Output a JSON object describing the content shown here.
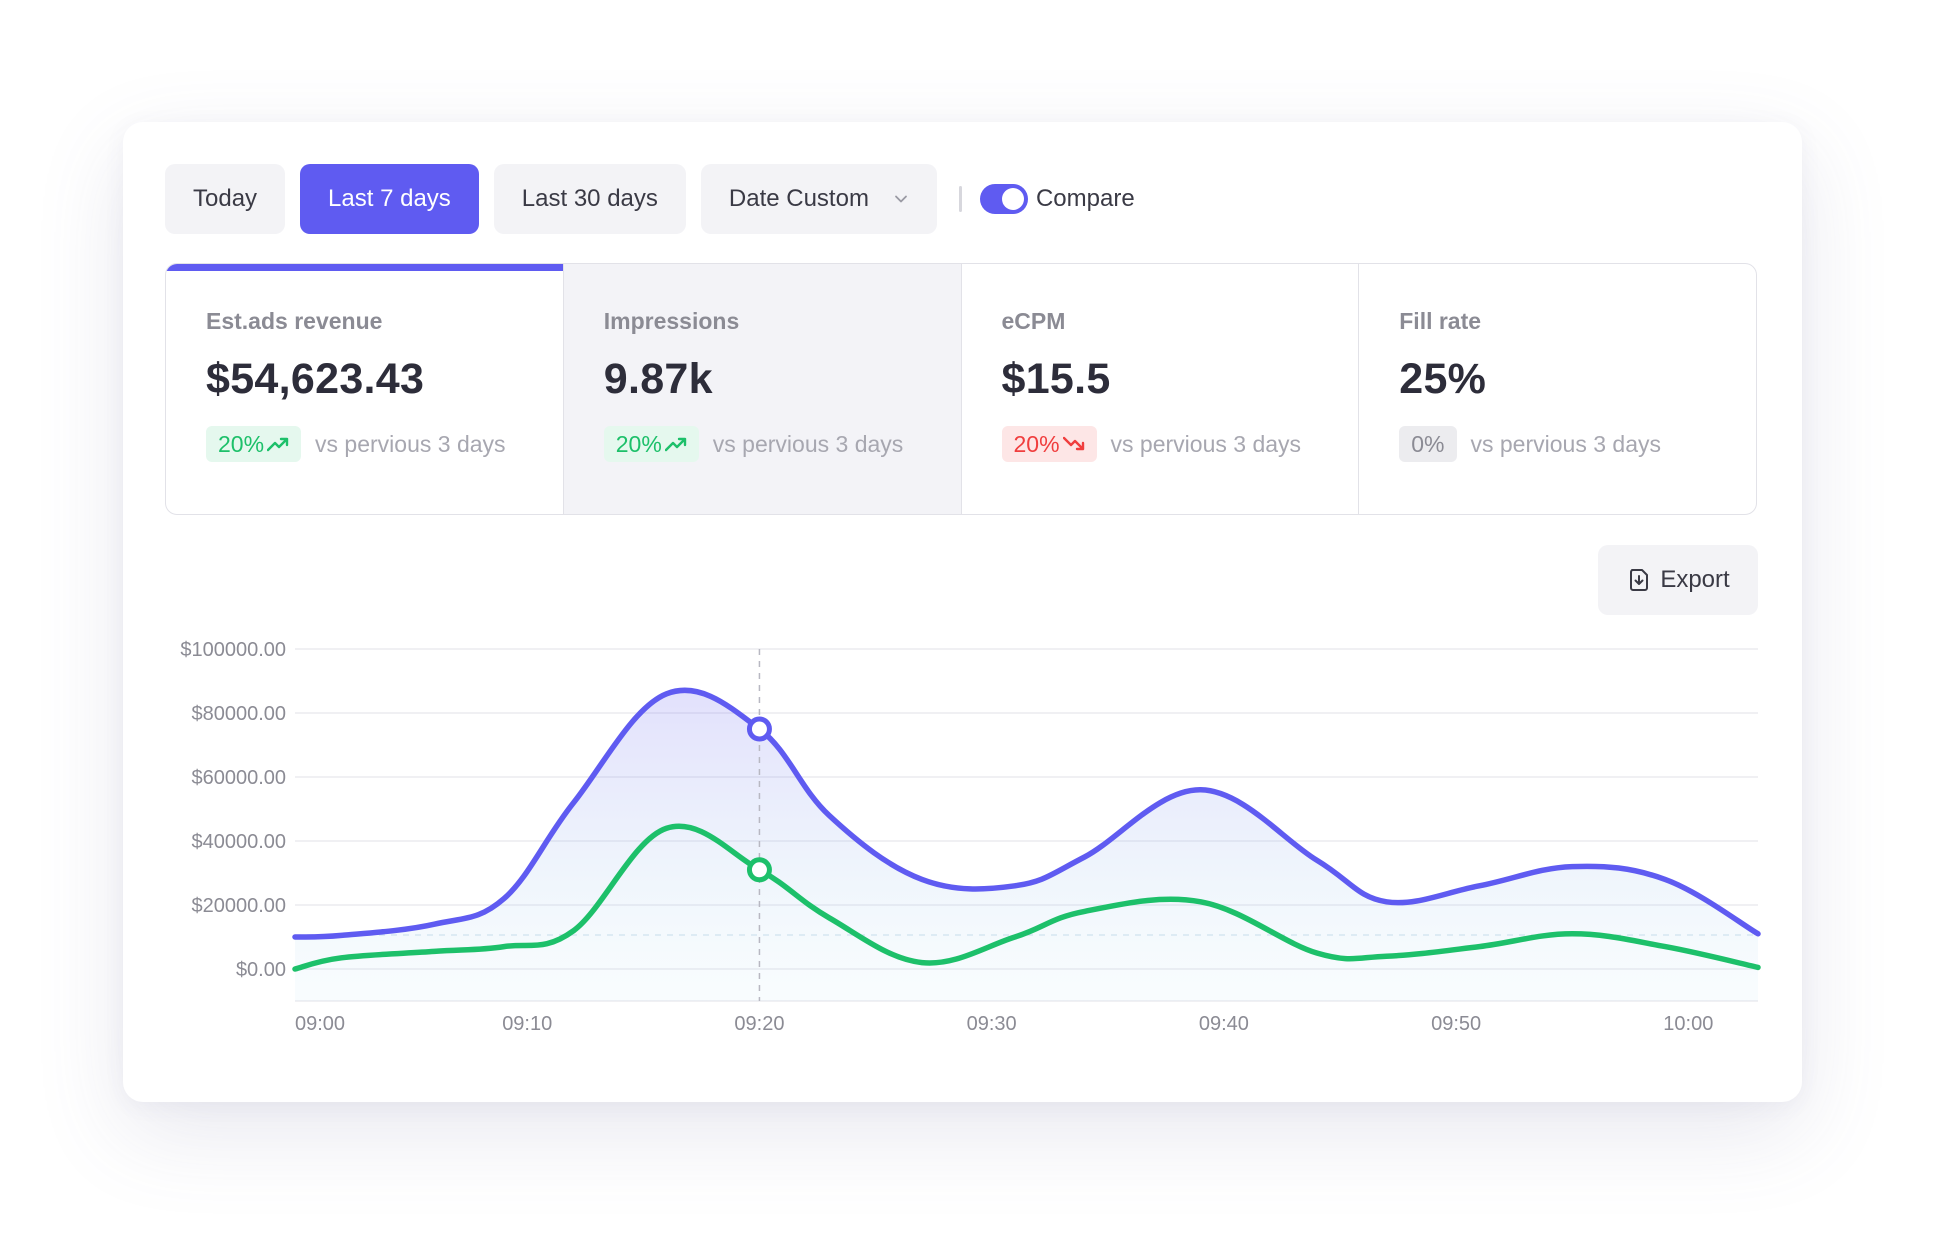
{
  "toolbar": {
    "tabs": [
      {
        "label": "Today",
        "active": false
      },
      {
        "label": "Last 7 days",
        "active": true
      },
      {
        "label": "Last 30 days",
        "active": false
      },
      {
        "label": "Date Custom",
        "active": false
      }
    ],
    "compare_label": "Compare",
    "compare_on": true
  },
  "metrics": [
    {
      "label": "Est.ads revenue",
      "value": "$54,623.43",
      "change": "20%",
      "trend": "up",
      "compare": "vs pervious 3 days"
    },
    {
      "label": "Impressions",
      "value": "9.87k",
      "change": "20%",
      "trend": "up",
      "compare": "vs pervious 3 days"
    },
    {
      "label": "eCPM",
      "value": "$15.5",
      "change": "20%",
      "trend": "down",
      "compare": "vs pervious 3 days"
    },
    {
      "label": "Fill rate",
      "value": "25%",
      "change": "0%",
      "trend": "flat",
      "compare": "vs pervious 3 days"
    }
  ],
  "export_label": "Export",
  "icons": {
    "dropdown": "chevron-down-icon",
    "export": "file-export-icon",
    "up": "trend-up-icon",
    "down": "trend-down-icon"
  },
  "colors": {
    "accent": "#5f5bf1",
    "green": "#1dc06a",
    "red": "#f03e3e"
  },
  "chart_data": {
    "type": "line",
    "x": [
      "09:00",
      "09:02",
      "09:06",
      "09:09",
      "09:12",
      "09:16",
      "09:20",
      "09:23",
      "09:27",
      "09:31",
      "09:34",
      "09:39",
      "09:44",
      "09:47",
      "09:51",
      "09:55",
      "09:59",
      "10:03"
    ],
    "series": [
      {
        "values": [
          10000,
          10500,
          14000,
          22000,
          52000,
          86000,
          75000,
          48000,
          28000,
          26000,
          35000,
          56000,
          34000,
          21000,
          26000,
          32000,
          28000,
          11000
        ]
      },
      {
        "values": [
          0,
          3500,
          5500,
          7000,
          12000,
          44000,
          31000,
          16000,
          2000,
          10000,
          18000,
          21000,
          5000,
          4000,
          7000,
          11000,
          7000,
          500
        ]
      }
    ],
    "xticks": [
      "09:00",
      "09:10",
      "09:20",
      "09:30",
      "09:40",
      "09:50",
      "10:00"
    ],
    "yticks": [
      "$100000.00",
      "$80000.00",
      "$60000.00",
      "$40000.00",
      "$20000.00",
      "$0.00"
    ],
    "ylim": [
      -10000,
      100000
    ],
    "xlim": [
      "09:00",
      "10:03"
    ],
    "highlight_x": "09:20",
    "grid": true,
    "legend": "none"
  }
}
